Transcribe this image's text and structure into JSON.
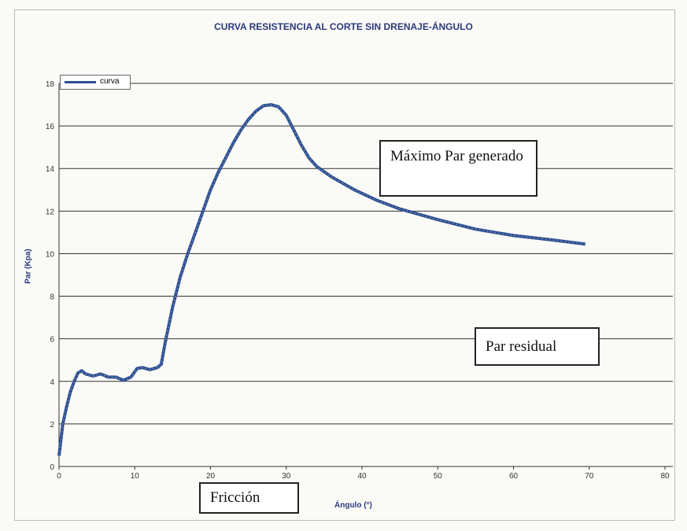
{
  "chart_data": {
    "type": "line",
    "title": "CURVA RESISTENCIA AL CORTE SIN DRENAJE-ÁNGULO",
    "xlabel": "Ángulo (°)",
    "ylabel": "Par (Kpa)",
    "xlim": [
      0,
      80
    ],
    "ylim": [
      0,
      18
    ],
    "xticks": [
      0,
      10,
      20,
      30,
      40,
      50,
      60,
      70,
      80
    ],
    "yticks": [
      0,
      2,
      4,
      6,
      8,
      10,
      12,
      14,
      16,
      18
    ],
    "grid": "horizontal",
    "legend_position": "top-left",
    "series": [
      {
        "name": "curva",
        "color": "#2f4f8f",
        "x": [
          0,
          0.5,
          1,
          1.5,
          2,
          2.5,
          3,
          3.5,
          4.5,
          5.5,
          6.5,
          7.5,
          8.5,
          9.5,
          10.3,
          11,
          12,
          13,
          13.5,
          14,
          15,
          16,
          17,
          18,
          19,
          20,
          21,
          22,
          23,
          24,
          25,
          26,
          27,
          28,
          29,
          30,
          31,
          32,
          33,
          34,
          36,
          39,
          42,
          45,
          50,
          55,
          60,
          65,
          69.5
        ],
        "y": [
          0.5,
          2,
          2.8,
          3.5,
          4,
          4.4,
          4.5,
          4.35,
          4.25,
          4.35,
          4.2,
          4.2,
          4.05,
          4.2,
          4.6,
          4.65,
          4.55,
          4.65,
          4.8,
          5.8,
          7.5,
          8.9,
          10,
          11,
          12,
          13,
          13.8,
          14.5,
          15.2,
          15.8,
          16.3,
          16.7,
          16.95,
          17,
          16.9,
          16.5,
          15.8,
          15.1,
          14.5,
          14.1,
          13.6,
          13.0,
          12.5,
          12.1,
          11.6,
          11.15,
          10.85,
          10.65,
          10.45
        ]
      }
    ],
    "annotations": [
      "Máximo Par generado",
      "Par residual",
      "Fricción"
    ]
  }
}
